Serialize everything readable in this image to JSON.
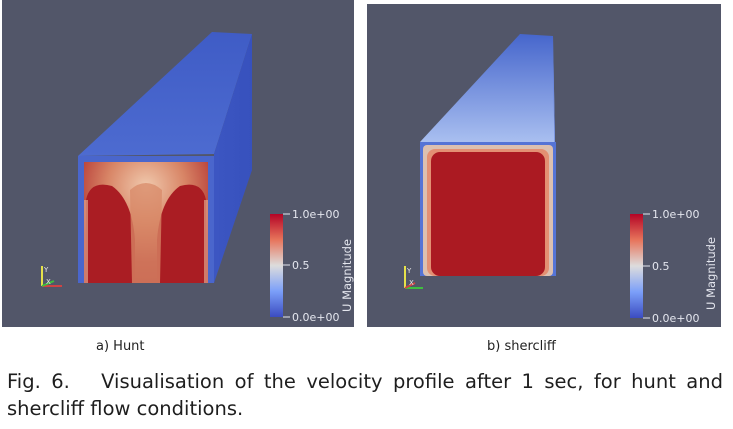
{
  "figures": [
    {
      "id": "a",
      "label": "a) Hunt",
      "colorbar": {
        "title": "U Magnitude",
        "ticks": [
          "1.0e+00",
          "0.5",
          "0.0e+00"
        ]
      },
      "axes_triad": [
        "Y",
        "X"
      ]
    },
    {
      "id": "b",
      "label": "b) shercliff",
      "colorbar": {
        "title": "U Magnitude",
        "ticks": [
          "1.0e+00",
          "0.5",
          "0.0e+00"
        ]
      },
      "axes_triad": [
        "Y",
        "X"
      ]
    }
  ],
  "colors": {
    "background": "#525669",
    "low": "#3b4cc0",
    "mid": "#dddddd",
    "high": "#b40426"
  },
  "caption": "Fig. 6.   Visualisation of the velocity profile after 1 sec, for hunt and shercliff flow conditions."
}
